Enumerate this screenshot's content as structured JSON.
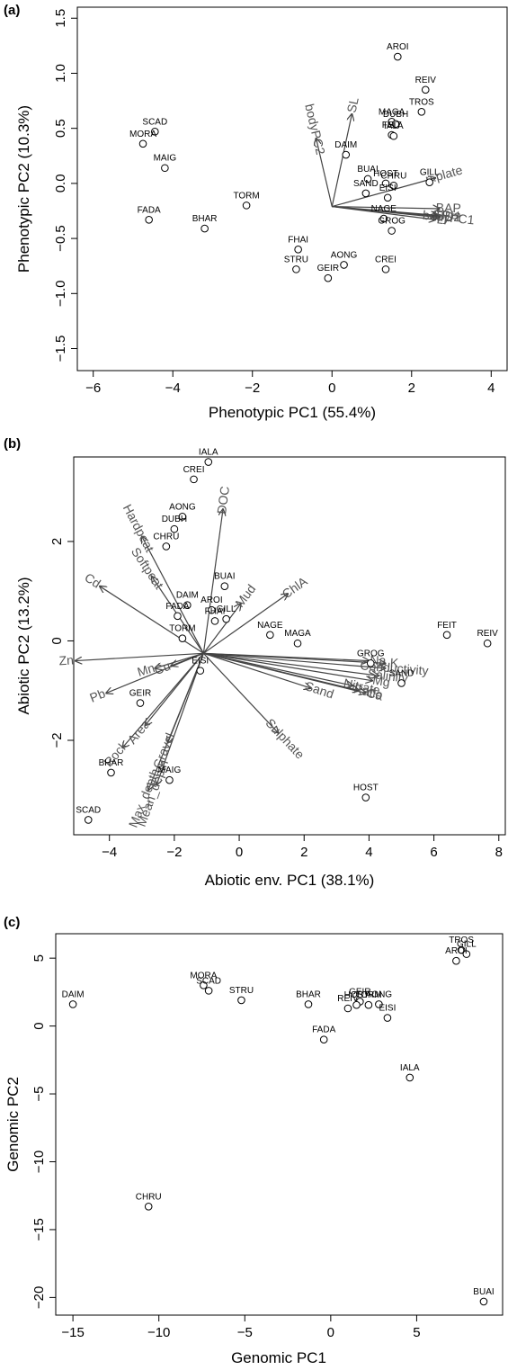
{
  "panels": [
    {
      "tag": "(a)"
    },
    {
      "tag": "(b)"
    },
    {
      "tag": "(c)"
    }
  ],
  "chart_data": [
    {
      "type": "scatter",
      "subtype": "biplot",
      "xlabel": "Phenotypic PC1 (55.4%)",
      "ylabel": "Phenotypic PC2 (10.3%)",
      "xlim": [
        -6.4,
        4.4
      ],
      "ylim": [
        -1.7,
        1.6
      ],
      "xticks": [
        -6,
        -4,
        -2,
        0,
        2,
        4
      ],
      "yticks": [
        -1.5,
        -1.0,
        -0.5,
        0.0,
        0.5,
        1.0,
        1.5
      ],
      "xtick_labels": [
        "−6",
        "−4",
        "−2",
        "0",
        "2",
        "4"
      ],
      "ytick_labels": [
        "−1.5",
        "−1.0",
        "−0.5",
        "0.0",
        "0.5",
        "1.0",
        "1.5"
      ],
      "points": [
        {
          "label": "AROI",
          "x": 1.65,
          "y": 1.15
        },
        {
          "label": "REIV",
          "x": 2.35,
          "y": 0.85
        },
        {
          "label": "TROS",
          "x": 2.25,
          "y": 0.65
        },
        {
          "label": "MAGA",
          "x": 1.5,
          "y": 0.56
        },
        {
          "label": "DUBH",
          "x": 1.6,
          "y": 0.54
        },
        {
          "label": "FEIT",
          "x": 1.5,
          "y": 0.44
        },
        {
          "label": "IALA",
          "x": 1.55,
          "y": 0.43
        },
        {
          "label": "DAIM",
          "x": 0.35,
          "y": 0.26
        },
        {
          "label": "GILL",
          "x": 2.45,
          "y": 0.01
        },
        {
          "label": "BUAI",
          "x": 0.9,
          "y": 0.04
        },
        {
          "label": "HOST",
          "x": 1.35,
          "y": 0.0
        },
        {
          "label": "CHRU",
          "x": 1.55,
          "y": -0.02
        },
        {
          "label": "SAND",
          "x": 0.85,
          "y": -0.09
        },
        {
          "label": "EISI",
          "x": 1.4,
          "y": -0.13
        },
        {
          "label": "NAGE",
          "x": 1.3,
          "y": -0.32
        },
        {
          "label": "GROG",
          "x": 1.5,
          "y": -0.43
        },
        {
          "label": "SCAD",
          "x": -4.45,
          "y": 0.47
        },
        {
          "label": "MORA",
          "x": -4.75,
          "y": 0.36
        },
        {
          "label": "MAIG",
          "x": -4.2,
          "y": 0.14
        },
        {
          "label": "TORM",
          "x": -2.15,
          "y": -0.2
        },
        {
          "label": "BHAR",
          "x": -3.2,
          "y": -0.41
        },
        {
          "label": "FADA",
          "x": -4.6,
          "y": -0.33
        },
        {
          "label": "FHAI",
          "x": -0.85,
          "y": -0.6
        },
        {
          "label": "AONG",
          "x": 0.3,
          "y": -0.74
        },
        {
          "label": "STRU",
          "x": -0.9,
          "y": -0.78
        },
        {
          "label": "CREI",
          "x": 1.35,
          "y": -0.78
        },
        {
          "label": "GEIR",
          "x": -0.1,
          "y": -0.86
        }
      ],
      "arrow_origin": [
        0,
        -0.21
      ],
      "arrows": [
        {
          "label": "bodyPC2",
          "x": -0.4,
          "y": 0.41
        },
        {
          "label": "SL",
          "x": 0.5,
          "y": 0.63
        },
        {
          "label": "n.plate",
          "x": 2.6,
          "y": 0.05
        },
        {
          "label": "BAP",
          "x": 2.7,
          "y": -0.23
        },
        {
          "label": "LP",
          "x": 2.6,
          "y": -0.33
        },
        {
          "label": "BD2",
          "x": 2.7,
          "y": -0.3
        },
        {
          "label": "bodyPC1",
          "x": 2.7,
          "y": -0.31
        },
        {
          "label": "SPH",
          "x": 2.65,
          "y": -0.29
        }
      ]
    },
    {
      "type": "scatter",
      "subtype": "biplot",
      "xlabel": "Abiotic env. PC1 (38.1%)",
      "ylabel": "Abiotic PC2 (13.2%)",
      "xlim": [
        -5.1,
        8.2
      ],
      "ylim": [
        -3.9,
        3.7
      ],
      "xticks": [
        -4,
        -2,
        0,
        2,
        4,
        6,
        8
      ],
      "yticks": [
        -2,
        0,
        2
      ],
      "xtick_labels": [
        "−4",
        "−2",
        "0",
        "2",
        "4",
        "6",
        "8"
      ],
      "ytick_labels": [
        "−2",
        "0",
        "2"
      ],
      "points": [
        {
          "label": "IALA",
          "x": -0.95,
          "y": 3.6
        },
        {
          "label": "CREI",
          "x": -1.4,
          "y": 3.25
        },
        {
          "label": "AONG",
          "x": -1.75,
          "y": 2.5
        },
        {
          "label": "DUBH",
          "x": -2.0,
          "y": 2.25
        },
        {
          "label": "CHRU",
          "x": -2.25,
          "y": 1.9
        },
        {
          "label": "BUAI",
          "x": -0.45,
          "y": 1.1
        },
        {
          "label": "DAIM",
          "x": -1.6,
          "y": 0.72
        },
        {
          "label": "AROI",
          "x": -0.85,
          "y": 0.62
        },
        {
          "label": "GILL",
          "x": -0.4,
          "y": 0.44
        },
        {
          "label": "FADA",
          "x": -1.9,
          "y": 0.5
        },
        {
          "label": "FHAI",
          "x": -0.75,
          "y": 0.4
        },
        {
          "label": "NAGE",
          "x": 0.95,
          "y": 0.12
        },
        {
          "label": "MAGA",
          "x": 1.8,
          "y": -0.05
        },
        {
          "label": "FEIT",
          "x": 6.4,
          "y": 0.12
        },
        {
          "label": "REIV",
          "x": 7.65,
          "y": -0.05
        },
        {
          "label": "GROG",
          "x": 4.05,
          "y": -0.45
        },
        {
          "label": "SAND",
          "x": 5.0,
          "y": -0.85
        },
        {
          "label": "TORM",
          "x": -1.75,
          "y": 0.05
        },
        {
          "label": "EISI",
          "x": -1.2,
          "y": -0.6
        },
        {
          "label": "GEIR",
          "x": -3.05,
          "y": -1.25
        },
        {
          "label": "MAIG",
          "x": -2.15,
          "y": -2.8
        },
        {
          "label": "BHAR",
          "x": -3.95,
          "y": -2.65
        },
        {
          "label": "HOST",
          "x": 3.9,
          "y": -3.15
        },
        {
          "label": "SCAD",
          "x": -4.65,
          "y": -3.6
        }
      ],
      "arrow_origin": [
        -1.1,
        -0.25
      ],
      "arrows": [
        {
          "label": "DOC",
          "x": -0.5,
          "y": 2.65
        },
        {
          "label": "Hardpeat",
          "x": -3.0,
          "y": 2.1
        },
        {
          "label": "Softpeat",
          "x": -2.7,
          "y": 1.3
        },
        {
          "label": "Cd",
          "x": -4.3,
          "y": 1.1
        },
        {
          "label": "Zn",
          "x": -5.05,
          "y": -0.4
        },
        {
          "label": "Mn",
          "x": -2.6,
          "y": -0.55
        },
        {
          "label": "Cu",
          "x": -2.1,
          "y": -0.5
        },
        {
          "label": "Pb",
          "x": -4.1,
          "y": -1.05
        },
        {
          "label": "Mud",
          "x": 0.05,
          "y": 0.75
        },
        {
          "label": "ChlA",
          "x": 1.5,
          "y": 0.95
        },
        {
          "label": "Na",
          "x": 4.0,
          "y": -0.4
        },
        {
          "label": "K",
          "x": 4.5,
          "y": -0.45
        },
        {
          "label": "Conductivity",
          "x": 4.5,
          "y": -0.55
        },
        {
          "label": "Salinity",
          "x": 4.3,
          "y": -0.7
        },
        {
          "label": "Mg",
          "x": 4.1,
          "y": -0.8
        },
        {
          "label": "Ca",
          "x": 3.9,
          "y": -1.05
        },
        {
          "label": "Sand",
          "x": 2.2,
          "y": -0.95
        },
        {
          "label": "Sulphate",
          "x": 1.2,
          "y": -1.85
        },
        {
          "label": "Nitrate",
          "x": 3.5,
          "y": -0.9
        },
        {
          "label": "Ratio",
          "x": 3.7,
          "y": -1.0
        },
        {
          "label": "Gravel",
          "x": -2.2,
          "y": -2.05
        },
        {
          "label": "Area",
          "x": -2.9,
          "y": -1.7
        },
        {
          "label": "Rock",
          "x": -3.6,
          "y": -2.15
        },
        {
          "label": "Max_depth",
          "x": -2.8,
          "y": -3.0
        },
        {
          "label": "Mean_depth",
          "x": -2.55,
          "y": -2.9
        }
      ]
    },
    {
      "type": "scatter",
      "xlabel": "Genomic PC1",
      "ylabel": "Genomic PC2",
      "xlim": [
        -16,
        10
      ],
      "ylim": [
        -21.3,
        6.8
      ],
      "xticks": [
        -15,
        -10,
        -5,
        0,
        5
      ],
      "yticks": [
        -20,
        -15,
        -10,
        -5,
        0,
        5
      ],
      "xtick_labels": [
        "−15",
        "−10",
        "−5",
        "0",
        "5"
      ],
      "ytick_labels": [
        "−20",
        "−15",
        "−10",
        "−5",
        "0",
        "5"
      ],
      "points": [
        {
          "label": "TROS",
          "x": 7.6,
          "y": 5.6
        },
        {
          "label": "GILL",
          "x": 7.9,
          "y": 5.3
        },
        {
          "label": "AROI",
          "x": 7.3,
          "y": 4.8
        },
        {
          "label": "DAIM",
          "x": -15.0,
          "y": 1.6
        },
        {
          "label": "MORA",
          "x": -7.4,
          "y": 3.0
        },
        {
          "label": "SCAD",
          "x": -7.1,
          "y": 2.6
        },
        {
          "label": "STRU",
          "x": -5.2,
          "y": 1.9
        },
        {
          "label": "BHAR",
          "x": -1.3,
          "y": 1.6
        },
        {
          "label": "GEIR",
          "x": 1.7,
          "y": 1.8
        },
        {
          "label": "REIV",
          "x": 1.0,
          "y": 1.3
        },
        {
          "label": "HOST",
          "x": 1.5,
          "y": 1.55
        },
        {
          "label": "TORM",
          "x": 2.2,
          "y": 1.55
        },
        {
          "label": "AONG",
          "x": 2.8,
          "y": 1.6
        },
        {
          "label": "EISI",
          "x": 3.3,
          "y": 0.6
        },
        {
          "label": "FADA",
          "x": -0.4,
          "y": -1.0
        },
        {
          "label": "IALA",
          "x": 4.6,
          "y": -3.8
        },
        {
          "label": "CHRU",
          "x": -10.6,
          "y": -13.3
        },
        {
          "label": "BUAI",
          "x": 8.9,
          "y": -20.3
        }
      ]
    }
  ]
}
